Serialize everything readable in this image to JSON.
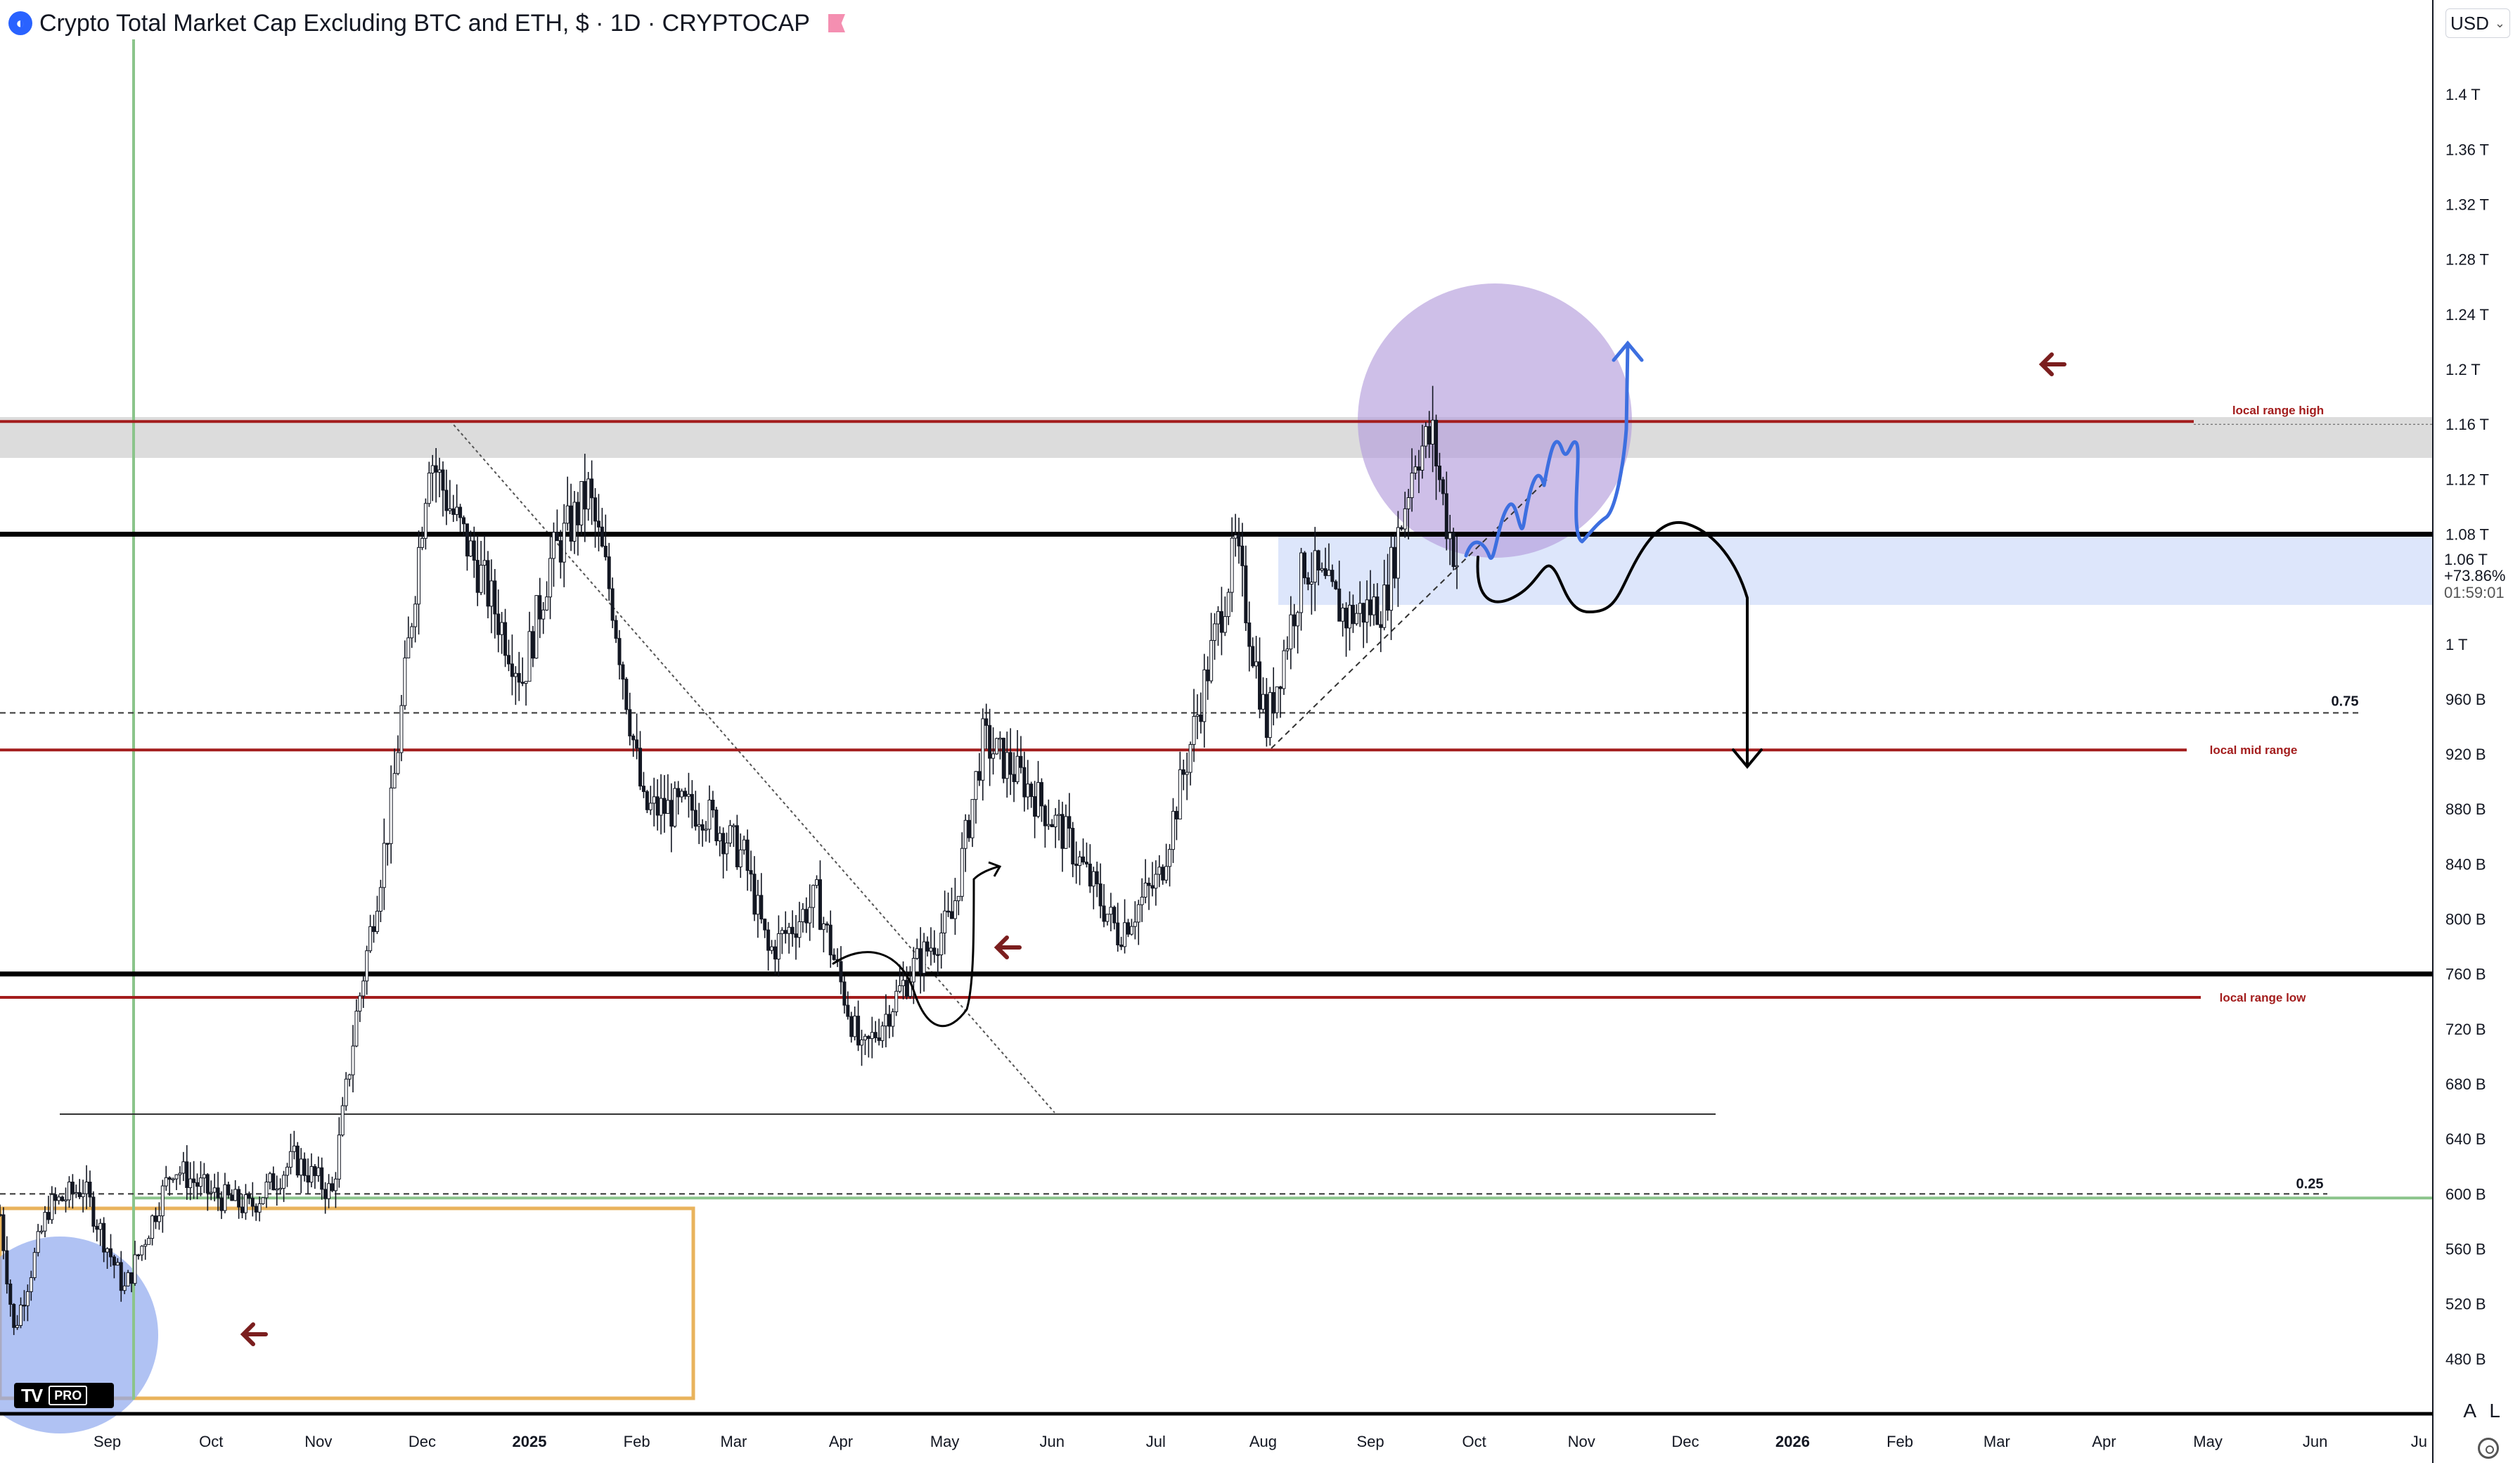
{
  "header": {
    "title": "Crypto Total Market Cap Excluding BTC and ETH, $ · 1D · CRYPTOCAP"
  },
  "currency_selector": {
    "value": "USD"
  },
  "price_axis_buttons": {
    "auto": "A",
    "log": "L"
  },
  "logo": {
    "pro_badge": "PRO"
  },
  "current_price": {
    "value": "1.06 T",
    "change": "+73.86%",
    "countdown": "01:59:01"
  },
  "colors": {
    "candles": "#131722",
    "range_red": "#a31d1d",
    "support_black": "#000000",
    "accent_blue": "#3d6fe0",
    "circle_purple": "#b39ddb",
    "circle_blue": "#8ea8ee",
    "green_line": "#8bc48b",
    "orange_box": "#e9b35c",
    "zone_gray": "#d9d9d9",
    "zone_blue": "#dbe4fb"
  },
  "chart_data": {
    "type": "candlestick",
    "timeframe": "1D",
    "y_unit": "$ (USD)",
    "ylim": [
      440000000000,
      1440000000000
    ],
    "y_ticks": [
      {
        "value": 1400000000000,
        "label": "1.4 T"
      },
      {
        "value": 1360000000000,
        "label": "1.36 T"
      },
      {
        "value": 1320000000000,
        "label": "1.32 T"
      },
      {
        "value": 1280000000000,
        "label": "1.28 T"
      },
      {
        "value": 1240000000000,
        "label": "1.24 T"
      },
      {
        "value": 1200000000000,
        "label": "1.2 T"
      },
      {
        "value": 1160000000000,
        "label": "1.16 T"
      },
      {
        "value": 1120000000000,
        "label": "1.12 T"
      },
      {
        "value": 1080000000000,
        "label": "1.08 T"
      },
      {
        "value": 1000000000000,
        "label": "1 T"
      },
      {
        "value": 960000000000,
        "label": "960 B"
      },
      {
        "value": 920000000000,
        "label": "920 B"
      },
      {
        "value": 880000000000,
        "label": "880 B"
      },
      {
        "value": 840000000000,
        "label": "840 B"
      },
      {
        "value": 800000000000,
        "label": "800 B"
      },
      {
        "value": 760000000000,
        "label": "760 B"
      },
      {
        "value": 720000000000,
        "label": "720 B"
      },
      {
        "value": 680000000000,
        "label": "680 B"
      },
      {
        "value": 640000000000,
        "label": "640 B"
      },
      {
        "value": 600000000000,
        "label": "600 B"
      },
      {
        "value": 560000000000,
        "label": "560 B"
      },
      {
        "value": 520000000000,
        "label": "520 B"
      },
      {
        "value": 480000000000,
        "label": "480 B"
      }
    ],
    "xlim": [
      "2024-08-01",
      "2026-07-05"
    ],
    "x_ticks": [
      {
        "date": "2024-09-01",
        "label": "Sep",
        "bold": false
      },
      {
        "date": "2024-10-01",
        "label": "Oct",
        "bold": false
      },
      {
        "date": "2024-11-01",
        "label": "Nov",
        "bold": false
      },
      {
        "date": "2024-12-01",
        "label": "Dec",
        "bold": false
      },
      {
        "date": "2025-01-01",
        "label": "2025",
        "bold": true
      },
      {
        "date": "2025-02-01",
        "label": "Feb",
        "bold": false
      },
      {
        "date": "2025-03-01",
        "label": "Mar",
        "bold": false
      },
      {
        "date": "2025-04-01",
        "label": "Apr",
        "bold": false
      },
      {
        "date": "2025-05-01",
        "label": "May",
        "bold": false
      },
      {
        "date": "2025-06-01",
        "label": "Jun",
        "bold": false
      },
      {
        "date": "2025-07-01",
        "label": "Jul",
        "bold": false
      },
      {
        "date": "2025-08-01",
        "label": "Aug",
        "bold": false
      },
      {
        "date": "2025-09-01",
        "label": "Sep",
        "bold": false
      },
      {
        "date": "2025-10-01",
        "label": "Oct",
        "bold": false
      },
      {
        "date": "2025-11-01",
        "label": "Nov",
        "bold": false
      },
      {
        "date": "2025-12-01",
        "label": "Dec",
        "bold": false
      },
      {
        "date": "2026-01-01",
        "label": "2026",
        "bold": true
      },
      {
        "date": "2026-02-01",
        "label": "Feb",
        "bold": false
      },
      {
        "date": "2026-03-01",
        "label": "Mar",
        "bold": false
      },
      {
        "date": "2026-04-01",
        "label": "Apr",
        "bold": false
      },
      {
        "date": "2026-05-01",
        "label": "May",
        "bold": false
      },
      {
        "date": "2026-06-01",
        "label": "Jun",
        "bold": false
      },
      {
        "date": "2026-07-01",
        "label": "Ju",
        "bold": false
      }
    ],
    "price_path": [
      {
        "date": "2024-08-01",
        "value": 585000000000
      },
      {
        "date": "2024-08-05",
        "value": 500000000000
      },
      {
        "date": "2024-08-15",
        "value": 590000000000
      },
      {
        "date": "2024-08-25",
        "value": 605000000000
      },
      {
        "date": "2024-09-06",
        "value": 530000000000
      },
      {
        "date": "2024-09-20",
        "value": 620000000000
      },
      {
        "date": "2024-10-01",
        "value": 600000000000
      },
      {
        "date": "2024-10-12",
        "value": 590000000000
      },
      {
        "date": "2024-10-25",
        "value": 625000000000
      },
      {
        "date": "2024-11-05",
        "value": 600000000000
      },
      {
        "date": "2024-11-12",
        "value": 730000000000
      },
      {
        "date": "2024-11-22",
        "value": 880000000000
      },
      {
        "date": "2024-12-03",
        "value": 1140000000000
      },
      {
        "date": "2024-12-09",
        "value": 1100000000000
      },
      {
        "date": "2024-12-18",
        "value": 1050000000000
      },
      {
        "date": "2024-12-30",
        "value": 975000000000
      },
      {
        "date": "2025-01-07",
        "value": 1060000000000
      },
      {
        "date": "2025-01-18",
        "value": 1110000000000
      },
      {
        "date": "2025-01-25",
        "value": 1030000000000
      },
      {
        "date": "2025-02-03",
        "value": 880000000000
      },
      {
        "date": "2025-02-20",
        "value": 880000000000
      },
      {
        "date": "2025-03-04",
        "value": 845000000000
      },
      {
        "date": "2025-03-11",
        "value": 775000000000
      },
      {
        "date": "2025-03-25",
        "value": 815000000000
      },
      {
        "date": "2025-04-07",
        "value": 700000000000
      },
      {
        "date": "2025-04-22",
        "value": 765000000000
      },
      {
        "date": "2025-05-03",
        "value": 800000000000
      },
      {
        "date": "2025-05-12",
        "value": 930000000000
      },
      {
        "date": "2025-05-24",
        "value": 900000000000
      },
      {
        "date": "2025-06-05",
        "value": 860000000000
      },
      {
        "date": "2025-06-20",
        "value": 790000000000
      },
      {
        "date": "2025-07-02",
        "value": 830000000000
      },
      {
        "date": "2025-07-14",
        "value": 960000000000
      },
      {
        "date": "2025-07-24",
        "value": 1070000000000
      },
      {
        "date": "2025-08-02",
        "value": 940000000000
      },
      {
        "date": "2025-08-13",
        "value": 1060000000000
      },
      {
        "date": "2025-08-25",
        "value": 1020000000000
      },
      {
        "date": "2025-09-05",
        "value": 1030000000000
      },
      {
        "date": "2025-09-14",
        "value": 1140000000000
      },
      {
        "date": "2025-09-19",
        "value": 1150000000000
      },
      {
        "date": "2025-09-23",
        "value": 1090000000000
      },
      {
        "date": "2025-09-26",
        "value": 1060000000000
      }
    ],
    "horizontal_levels": [
      {
        "value": 1162000000000,
        "label": "local range high",
        "color": "#a31d1d"
      },
      {
        "value": 923000000000,
        "label": "local mid range",
        "color": "#a31d1d"
      },
      {
        "value": 743000000000,
        "label": "local range low",
        "color": "#a31d1d"
      },
      {
        "value": 1080000000000,
        "label": "",
        "color": "#000000"
      },
      {
        "value": 760000000000,
        "label": "",
        "color": "#000000"
      },
      {
        "value": 950000000000,
        "label": "0.75",
        "color": "#333333",
        "dashed": true
      },
      {
        "value": 600000000000,
        "label": "0.25",
        "color": "#333333",
        "dashed": true
      },
      {
        "value": 597000000000,
        "label": "",
        "color": "#8bc48b"
      },
      {
        "value": 658000000000,
        "label": "",
        "color": "#333333"
      }
    ]
  }
}
